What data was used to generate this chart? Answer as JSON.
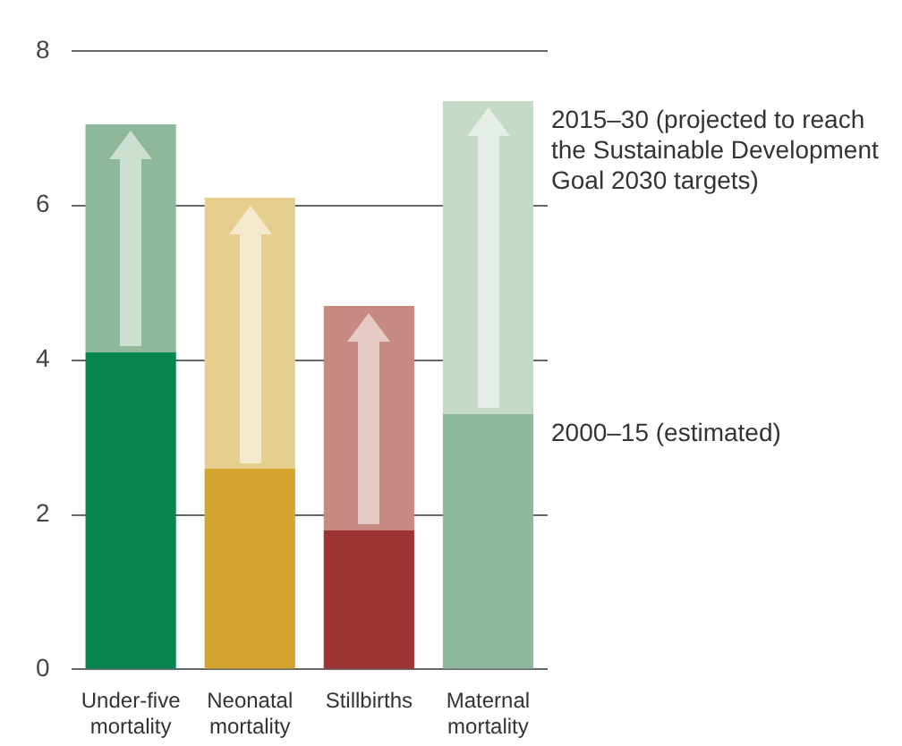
{
  "chart_data": {
    "type": "bar",
    "stacked": true,
    "categories": [
      "Under-five mortality",
      "Neonatal mortality",
      "Stillbirths",
      "Maternal mortality"
    ],
    "series": [
      {
        "name": "2000–15 (estimated)",
        "colors": [
          "#058550",
          "#d4a52e",
          "#9e3535",
          "#8fb89a"
        ],
        "values": [
          4.1,
          2.6,
          1.8,
          3.3
        ]
      },
      {
        "name": "2015–30 (projected to reach the Sustainable Development Goal 2030 targets)",
        "colors": [
          "#8fb89a",
          "#e6cf8e",
          "#c68a80",
          "#c5d9c8"
        ],
        "values": [
          2.95,
          3.5,
          2.9,
          4.05
        ]
      }
    ],
    "ylim": [
      0,
      8
    ],
    "yticks": [
      0,
      2,
      4,
      6,
      8
    ],
    "grid": "y",
    "legend": false
  }
}
